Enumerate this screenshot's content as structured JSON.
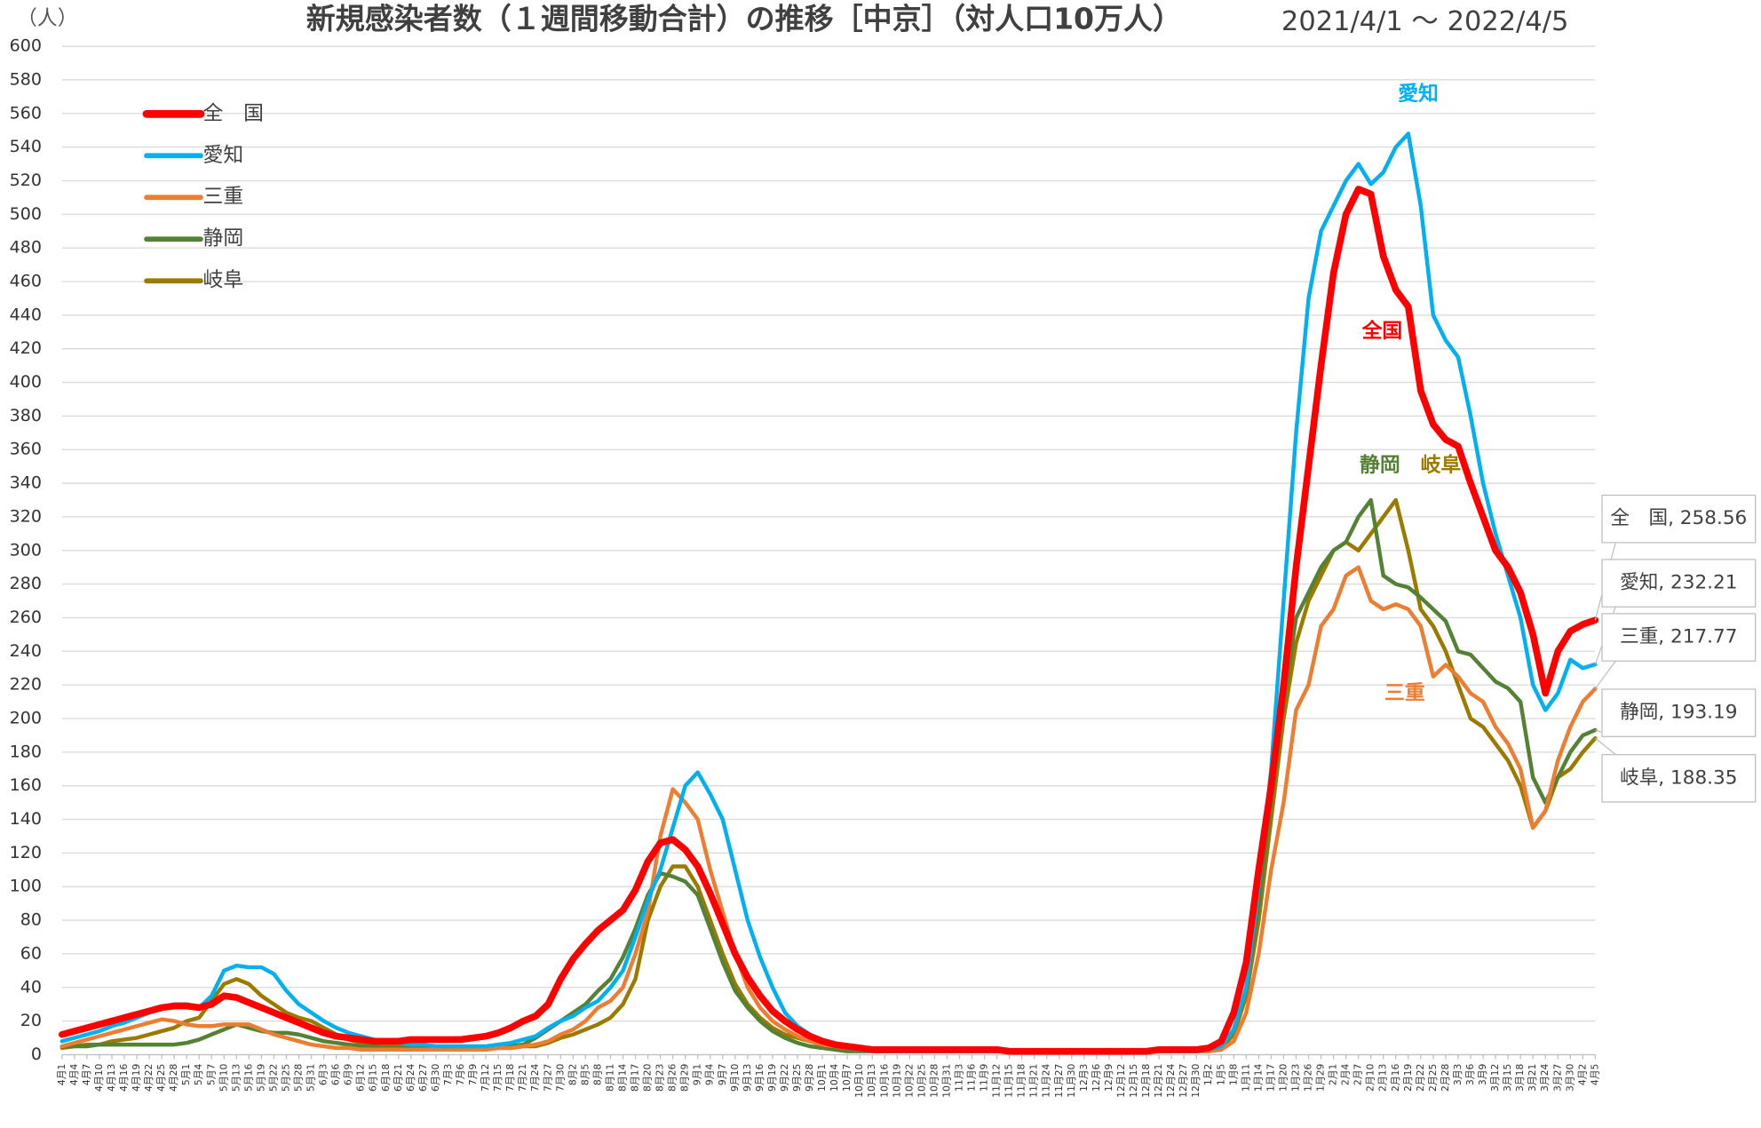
{
  "chart_data": {
    "type": "line",
    "title": "新規感染者数（１週間移動合計）の推移［中京］（対人口10万人）",
    "subtitle": "2021/4/1 〜 2022/4/5",
    "y_unit": "（人）",
    "categories": [
      "4月1",
      "4月4",
      "4月7",
      "4月10",
      "4月13",
      "4月16",
      "4月19",
      "4月22",
      "4月25",
      "4月28",
      "5月1",
      "5月4",
      "5月7",
      "5月10",
      "5月13",
      "5月16",
      "5月19",
      "5月22",
      "5月25",
      "5月28",
      "5月31",
      "6月3",
      "6月6",
      "6月9",
      "6月12",
      "6月15",
      "6月18",
      "6月21",
      "6月24",
      "6月27",
      "6月30",
      "7月3",
      "7月6",
      "7月9",
      "7月12",
      "7月15",
      "7月18",
      "7月21",
      "7月24",
      "7月27",
      "7月30",
      "8月2",
      "8月5",
      "8月8",
      "8月11",
      "8月14",
      "8月17",
      "8月20",
      "8月23",
      "8月26",
      "8月29",
      "9月1",
      "9月4",
      "9月7",
      "9月10",
      "9月13",
      "9月16",
      "9月19",
      "9月22",
      "9月25",
      "9月28",
      "10月1",
      "10月4",
      "10月7",
      "10月10",
      "10月13",
      "10月16",
      "10月19",
      "10月22",
      "10月25",
      "10月28",
      "10月31",
      "11月3",
      "11月6",
      "11月9",
      "11月12",
      "11月15",
      "11月18",
      "11月21",
      "11月24",
      "11月27",
      "11月30",
      "12月3",
      "12月6",
      "12月9",
      "12月12",
      "12月15",
      "12月18",
      "12月21",
      "12月24",
      "12月27",
      "12月30",
      "1月2",
      "1月5",
      "1月8",
      "1月11",
      "1月14",
      "1月17",
      "1月20",
      "1月23",
      "1月26",
      "1月29",
      "2月1",
      "2月4",
      "2月7",
      "2月10",
      "2月13",
      "2月16",
      "2月19",
      "2月22",
      "2月25",
      "2月28",
      "3月3",
      "3月6",
      "3月9",
      "3月12",
      "3月15",
      "3月18",
      "3月21",
      "3月24",
      "3月27",
      "3月30",
      "4月2",
      "4月5"
    ],
    "series": [
      {
        "name": "全　国",
        "color": "#ff0000",
        "width": 6,
        "end_label": "全　国, 258.56",
        "values": [
          12,
          14,
          16,
          18,
          20,
          22,
          24,
          26,
          28,
          29,
          29,
          28,
          30,
          35,
          34,
          31,
          28,
          25,
          22,
          19,
          16,
          13,
          11,
          10,
          9,
          8,
          8,
          8,
          9,
          9,
          9,
          9,
          9,
          10,
          11,
          13,
          16,
          20,
          23,
          30,
          45,
          57,
          66,
          74,
          80,
          86,
          98,
          115,
          126,
          128,
          122,
          112,
          96,
          78,
          60,
          46,
          35,
          26,
          20,
          15,
          11,
          8,
          6,
          5,
          4,
          3,
          3,
          3,
          3,
          3,
          3,
          3,
          3,
          3,
          3,
          3,
          2,
          2,
          2,
          2,
          2,
          2,
          2,
          2,
          2,
          2,
          2,
          2,
          3,
          3,
          3,
          3,
          4,
          8,
          25,
          55,
          110,
          160,
          220,
          290,
          350,
          410,
          465,
          500,
          515,
          512,
          475,
          455,
          445,
          395,
          375,
          366,
          362,
          340,
          320,
          300,
          290,
          275,
          250,
          215,
          240,
          252,
          256,
          258.56
        ]
      },
      {
        "name": "愛知",
        "color": "#00b0f0",
        "width": 3.5,
        "end_label": "愛知, 232.21",
        "values": [
          8,
          10,
          12,
          14,
          17,
          19,
          22,
          25,
          27,
          30,
          30,
          28,
          35,
          50,
          53,
          52,
          52,
          48,
          38,
          30,
          25,
          20,
          16,
          13,
          11,
          9,
          8,
          7,
          6,
          6,
          5,
          5,
          5,
          5,
          5,
          6,
          7,
          9,
          11,
          16,
          20,
          23,
          28,
          32,
          40,
          50,
          70,
          92,
          110,
          135,
          160,
          168,
          155,
          140,
          110,
          80,
          58,
          40,
          25,
          17,
          12,
          8,
          6,
          4,
          3,
          2,
          2,
          2,
          2,
          2,
          2,
          2,
          2,
          2,
          2,
          2,
          2,
          2,
          2,
          2,
          2,
          2,
          2,
          2,
          2,
          2,
          2,
          2,
          2,
          2,
          2,
          2,
          3,
          5,
          15,
          40,
          100,
          170,
          270,
          370,
          450,
          490,
          505,
          520,
          530,
          518,
          525,
          540,
          548,
          505,
          440,
          425,
          415,
          380,
          340,
          310,
          285,
          260,
          220,
          205,
          215,
          235,
          230,
          232.21
        ]
      },
      {
        "name": "三重",
        "color": "#ed7d31",
        "width": 3.5,
        "end_label": "三重, 217.77",
        "values": [
          5,
          7,
          9,
          11,
          13,
          15,
          17,
          19,
          21,
          20,
          18,
          17,
          17,
          18,
          18,
          18,
          15,
          12,
          10,
          8,
          6,
          5,
          4,
          4,
          3,
          3,
          3,
          3,
          3,
          3,
          3,
          3,
          3,
          3,
          3,
          4,
          4,
          5,
          6,
          8,
          12,
          15,
          20,
          28,
          32,
          40,
          60,
          85,
          130,
          158,
          150,
          140,
          110,
          85,
          60,
          40,
          28,
          20,
          15,
          11,
          8,
          6,
          5,
          4,
          3,
          3,
          3,
          2,
          2,
          2,
          2,
          2,
          2,
          2,
          2,
          2,
          2,
          2,
          2,
          2,
          2,
          2,
          2,
          2,
          2,
          2,
          2,
          2,
          2,
          2,
          2,
          2,
          2,
          3,
          8,
          25,
          60,
          110,
          150,
          205,
          220,
          255,
          265,
          285,
          290,
          270,
          265,
          268,
          265,
          255,
          225,
          232,
          225,
          215,
          210,
          195,
          185,
          170,
          135,
          145,
          175,
          195,
          210,
          217.77
        ]
      },
      {
        "name": "静岡",
        "color": "#548235",
        "width": 3.5,
        "end_label": "静岡, 193.19",
        "values": [
          5,
          5,
          5,
          6,
          6,
          6,
          6,
          6,
          6,
          6,
          7,
          9,
          12,
          15,
          18,
          16,
          14,
          13,
          13,
          12,
          10,
          8,
          7,
          6,
          5,
          5,
          4,
          4,
          4,
          4,
          4,
          4,
          4,
          4,
          4,
          4,
          5,
          6,
          10,
          15,
          20,
          25,
          30,
          38,
          45,
          58,
          75,
          95,
          108,
          106,
          103,
          95,
          75,
          55,
          38,
          28,
          20,
          14,
          10,
          7,
          5,
          4,
          3,
          2,
          2,
          2,
          2,
          2,
          2,
          2,
          2,
          2,
          2,
          2,
          2,
          2,
          2,
          2,
          2,
          2,
          2,
          2,
          2,
          2,
          2,
          2,
          2,
          2,
          2,
          2,
          2,
          2,
          2,
          5,
          15,
          40,
          90,
          150,
          210,
          260,
          275,
          290,
          300,
          305,
          320,
          330,
          285,
          280,
          278,
          272,
          265,
          258,
          240,
          238,
          230,
          222,
          218,
          210,
          165,
          150,
          165,
          180,
          190,
          193.19
        ]
      },
      {
        "name": "岐阜",
        "color": "#9c7a00",
        "width": 3.5,
        "end_label": "岐阜, 188.35",
        "values": [
          4,
          5,
          6,
          6,
          8,
          9,
          10,
          12,
          14,
          16,
          20,
          22,
          32,
          42,
          45,
          42,
          35,
          30,
          25,
          22,
          20,
          16,
          12,
          9,
          7,
          6,
          5,
          5,
          4,
          4,
          4,
          3,
          3,
          3,
          3,
          4,
          4,
          5,
          5,
          7,
          10,
          12,
          15,
          18,
          22,
          30,
          45,
          80,
          100,
          112,
          112,
          100,
          80,
          60,
          42,
          30,
          22,
          16,
          12,
          10,
          8,
          6,
          5,
          5,
          4,
          3,
          3,
          3,
          3,
          3,
          3,
          3,
          3,
          3,
          3,
          2,
          2,
          2,
          2,
          2,
          2,
          2,
          2,
          2,
          2,
          2,
          2,
          2,
          2,
          2,
          2,
          2,
          2,
          4,
          12,
          35,
          80,
          140,
          200,
          245,
          270,
          285,
          300,
          305,
          300,
          310,
          320,
          330,
          300,
          265,
          255,
          240,
          220,
          200,
          195,
          185,
          175,
          160,
          135,
          145,
          165,
          170,
          180,
          188.35
        ]
      }
    ],
    "annotations": [
      {
        "text": "愛知",
        "color": "#00b0f0"
      },
      {
        "text": "全国",
        "color": "#ff0000"
      },
      {
        "text": "静岡",
        "color": "#548235"
      },
      {
        "text": "岐阜",
        "color": "#9c7a00"
      },
      {
        "text": "三重",
        "color": "#ed7d31"
      }
    ],
    "ylim": [
      0,
      600
    ],
    "yticks": [
      0,
      20,
      40,
      60,
      80,
      100,
      120,
      140,
      160,
      180,
      200,
      220,
      240,
      260,
      280,
      300,
      320,
      340,
      360,
      380,
      400,
      420,
      440,
      460,
      480,
      500,
      520,
      540,
      560,
      580,
      600
    ],
    "grid": true,
    "legend": "upper left"
  }
}
